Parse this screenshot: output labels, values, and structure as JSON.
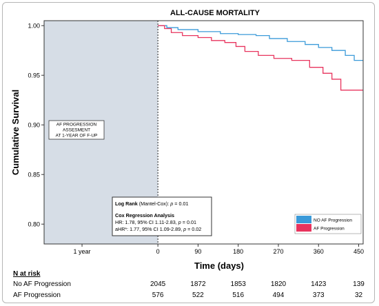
{
  "chart_data": {
    "type": "line",
    "title": "ALL-CAUSE MORTALITY",
    "xlabel": "Time (days)",
    "ylabel": "Cumulative Survival",
    "xlim": [
      -255,
      460
    ],
    "ylim": [
      0.78,
      1.005
    ],
    "y_ticks": [
      "1.00",
      "0.95",
      "0.90",
      "0.85",
      "0.80"
    ],
    "y_tick_values": [
      1.0,
      0.95,
      0.9,
      0.85,
      0.8
    ],
    "x_ticks": [
      "0",
      "90",
      "180",
      "270",
      "360",
      "450"
    ],
    "x_tick_values": [
      0,
      90,
      180,
      270,
      360,
      450
    ],
    "pre_tick_label": "1 year",
    "pre_tick_value": -170,
    "shaded_region": {
      "x_range": [
        -255,
        0
      ],
      "lines": [
        "AF PROGRESSION",
        "ASSESMENT",
        "AT 1-YEAR OF F-UP"
      ]
    },
    "series": [
      {
        "name": "NO AF Progression",
        "color": "#3a9ad9",
        "points": [
          [
            0,
            1.0
          ],
          [
            20,
            0.998
          ],
          [
            45,
            0.996
          ],
          [
            90,
            0.994
          ],
          [
            140,
            0.992
          ],
          [
            180,
            0.991
          ],
          [
            220,
            0.99
          ],
          [
            250,
            0.987
          ],
          [
            290,
            0.984
          ],
          [
            330,
            0.981
          ],
          [
            360,
            0.978
          ],
          [
            390,
            0.975
          ],
          [
            420,
            0.97
          ],
          [
            440,
            0.965
          ],
          [
            460,
            0.965
          ]
        ]
      },
      {
        "name": "AF Progression",
        "color": "#e8335d",
        "points": [
          [
            0,
            1.0
          ],
          [
            15,
            0.997
          ],
          [
            30,
            0.993
          ],
          [
            55,
            0.99
          ],
          [
            90,
            0.988
          ],
          [
            120,
            0.985
          ],
          [
            150,
            0.983
          ],
          [
            175,
            0.979
          ],
          [
            195,
            0.974
          ],
          [
            225,
            0.97
          ],
          [
            260,
            0.967
          ],
          [
            300,
            0.965
          ],
          [
            340,
            0.958
          ],
          [
            370,
            0.952
          ],
          [
            390,
            0.946
          ],
          [
            410,
            0.935
          ],
          [
            460,
            0.935
          ]
        ]
      }
    ],
    "legend_position": "bottom-right",
    "annotation": {
      "log_rank_label": "Log Rank",
      "log_rank_rest": " (Mantel-Cox): ",
      "log_rank_p": "p",
      "log_rank_value": " = 0.01",
      "cox_title": "Cox Regression Analysis",
      "hr_line": "HR: 1.78, 95% CI 1.11-2.83, ",
      "hr_p": "p",
      "hr_value": " = 0.01",
      "ahr_line": "aHR*: 1.77, 95% CI 1.09-2.89, ",
      "ahr_p": "p",
      "ahr_value": " = 0.02"
    },
    "risk_table": {
      "header": "N at risk",
      "rows": [
        {
          "label": "No AF Progression",
          "values": [
            "2045",
            "1872",
            "1853",
            "1820",
            "1423",
            "139"
          ]
        },
        {
          "label": "AF Progression",
          "values": [
            "576",
            "522",
            "516",
            "494",
            "373",
            "32"
          ]
        }
      ]
    }
  }
}
